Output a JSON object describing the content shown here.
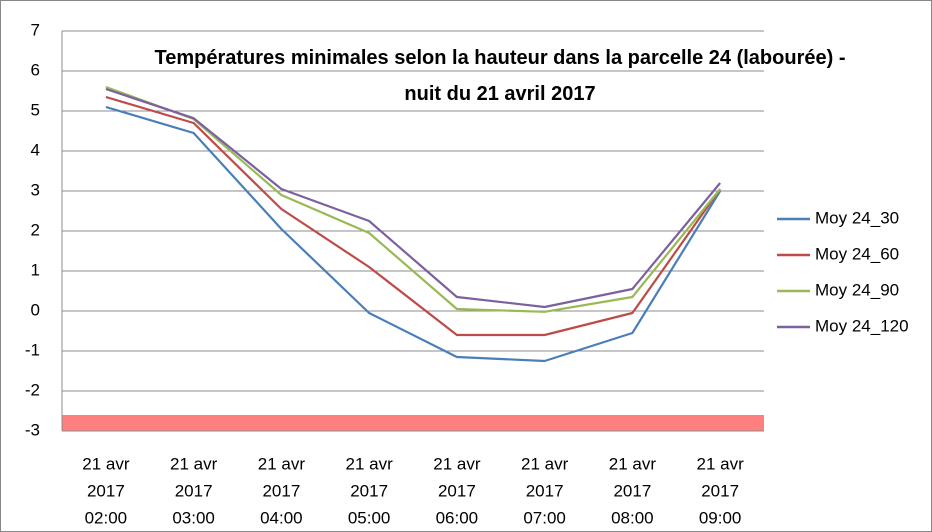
{
  "chart_data": {
    "type": "line",
    "title": "Températures minimales selon la hauteur dans la parcelle 24 (labourée) - nuit du 21 avril 2017",
    "categories": [
      [
        "21 avr",
        "2017",
        "02:00"
      ],
      [
        "21 avr",
        "2017",
        "03:00"
      ],
      [
        "21 avr",
        "2017",
        "04:00"
      ],
      [
        "21 avr",
        "2017",
        "05:00"
      ],
      [
        "21 avr",
        "2017",
        "06:00"
      ],
      [
        "21 avr",
        "2017",
        "07:00"
      ],
      [
        "21 avr",
        "2017",
        "08:00"
      ],
      [
        "21 avr",
        "2017",
        "09:00"
      ]
    ],
    "series": [
      {
        "name": "Moy 24_30",
        "color": "#4a7ebb",
        "values": [
          5.1,
          4.45,
          2.05,
          -0.05,
          -1.15,
          -1.25,
          -0.55,
          3.0
        ]
      },
      {
        "name": "Moy 24_60",
        "color": "#be4b48",
        "values": [
          5.35,
          4.7,
          2.55,
          1.1,
          -0.6,
          -0.6,
          -0.05,
          3.05
        ]
      },
      {
        "name": "Moy 24_90",
        "color": "#98b954",
        "values": [
          5.6,
          4.8,
          2.9,
          1.95,
          0.05,
          -0.02,
          0.35,
          3.05
        ]
      },
      {
        "name": "Moy 24_120",
        "color": "#7d60a0",
        "values": [
          5.55,
          4.82,
          3.05,
          2.25,
          0.35,
          0.1,
          0.55,
          3.2
        ]
      }
    ],
    "ylim": [
      -3,
      7
    ],
    "yticks": [
      -3,
      -2,
      -1,
      0,
      1,
      2,
      3,
      4,
      5,
      6,
      7
    ],
    "grid": true,
    "legend": "right",
    "shaded_band": {
      "from": -3,
      "to": -2.6,
      "color": "#ff7f7f"
    }
  }
}
